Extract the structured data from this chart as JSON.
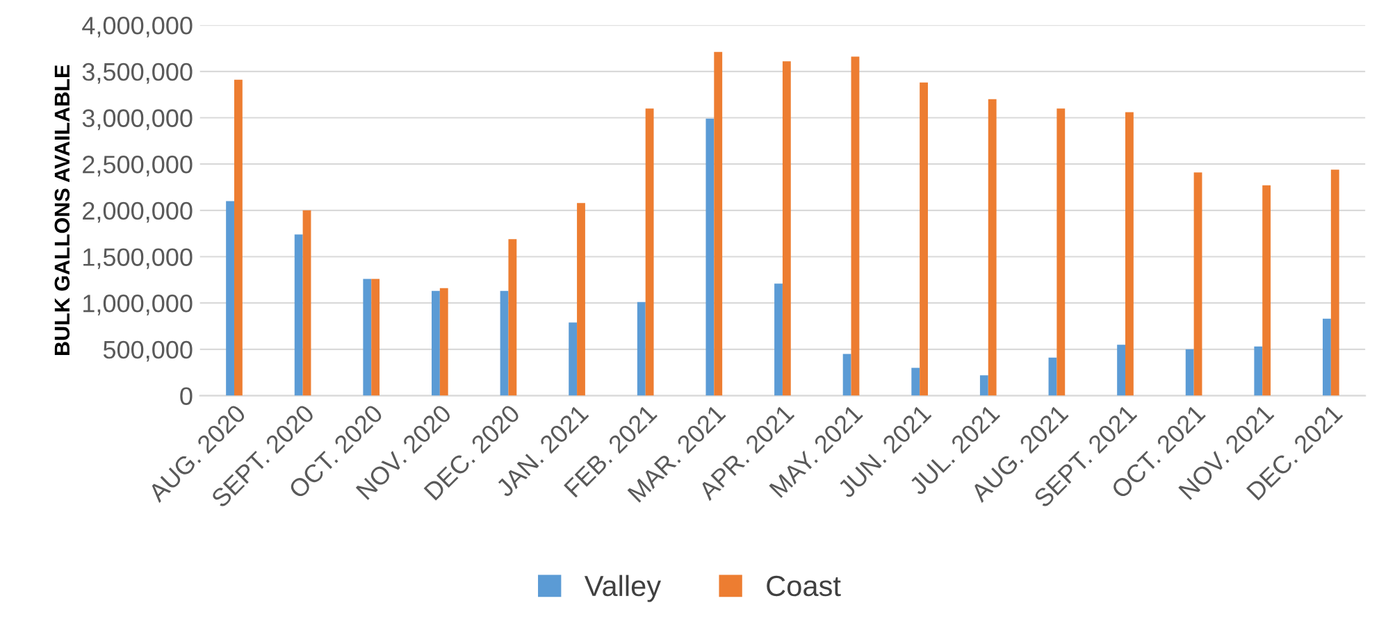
{
  "chart_data": {
    "type": "bar",
    "ylabel": "BULK GALLONS AVAILABLE",
    "categories": [
      "AUG. 2020",
      "SEPT. 2020",
      "OCT. 2020",
      "NOV. 2020",
      "DEC. 2020",
      "JAN. 2021",
      "FEB. 2021",
      "MAR. 2021",
      "APR. 2021",
      "MAY. 2021",
      "JUN. 2021",
      "JUL. 2021",
      "AUG. 2021",
      "SEPT. 2021",
      "OCT. 2021",
      "NOV. 2021",
      "DEC. 2021"
    ],
    "series": [
      {
        "name": "Valley",
        "color": "#5b9bd5",
        "values": [
          2100000,
          1740000,
          1260000,
          1130000,
          1130000,
          790000,
          1010000,
          2990000,
          1210000,
          450000,
          300000,
          220000,
          410000,
          550000,
          500000,
          530000,
          830000
        ]
      },
      {
        "name": "Coast",
        "color": "#ed7d31",
        "values": [
          3410000,
          2000000,
          1260000,
          1160000,
          1690000,
          2080000,
          3100000,
          3710000,
          3610000,
          3660000,
          3380000,
          3200000,
          3100000,
          3060000,
          2410000,
          2270000,
          2440000
        ]
      }
    ],
    "ylim": [
      0,
      4000000
    ],
    "yticks": [
      {
        "value": 0,
        "label": "0"
      },
      {
        "value": 500000,
        "label": "500,000"
      },
      {
        "value": 1000000,
        "label": "1,000,000"
      },
      {
        "value": 1500000,
        "label": "1,500,000"
      },
      {
        "value": 2000000,
        "label": "2,000,000"
      },
      {
        "value": 2500000,
        "label": "2,500,000"
      },
      {
        "value": 3000000,
        "label": "3,000,000"
      },
      {
        "value": 3500000,
        "label": "3,500,000"
      },
      {
        "value": 4000000,
        "label": "4,000,000"
      }
    ],
    "grid": "y",
    "legend": "bottom"
  }
}
